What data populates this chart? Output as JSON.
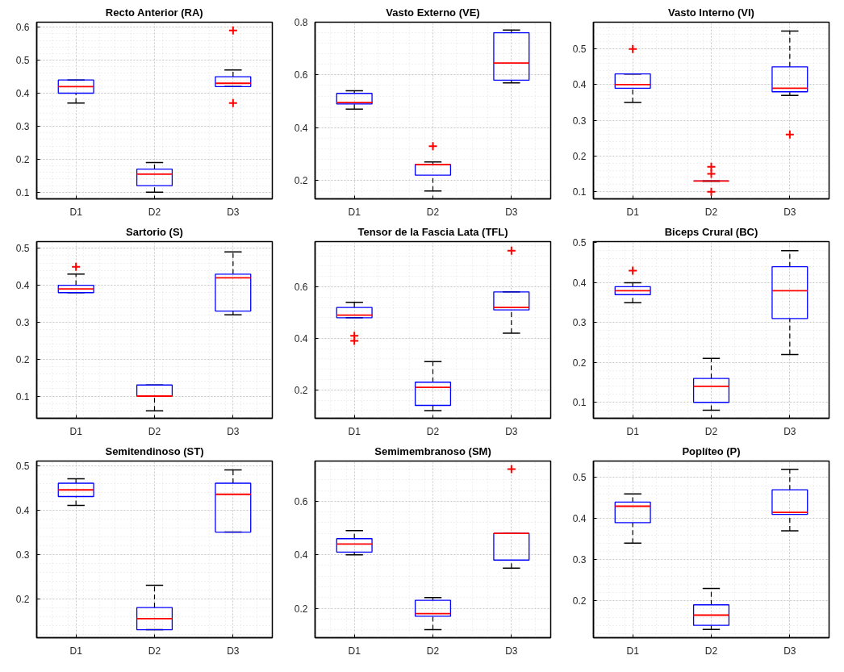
{
  "chart_data": [
    {
      "type": "box",
      "title": "Recto Anterior (RA)",
      "categories": [
        "D1",
        "D2",
        "D3"
      ],
      "ylim": [
        0.08,
        0.615
      ],
      "yticks": [
        0.1,
        0.2,
        0.3,
        0.4,
        0.5,
        0.6
      ],
      "grid": true,
      "marker": "cross",
      "line_style": "dashed",
      "series": [
        {
          "color": "#0000ff",
          "boxes": [
            {
              "low": 0.37,
              "q1": 0.4,
              "median": 0.42,
              "q3": 0.44,
              "high": 0.44
            },
            {
              "low": 0.1,
              "q1": 0.12,
              "median": 0.155,
              "q3": 0.17,
              "high": 0.19
            },
            {
              "low": 0.42,
              "q1": 0.42,
              "median": 0.43,
              "q3": 0.45,
              "high": 0.47,
              "outliers": [
                0.59,
                0.37
              ]
            }
          ]
        }
      ]
    },
    {
      "type": "box",
      "title": "Vasto Externo (VE)",
      "categories": [
        "D1",
        "D2",
        "D3"
      ],
      "ylim": [
        0.13,
        0.8
      ],
      "yticks": [
        0.2,
        0.4,
        0.6,
        0.8
      ],
      "grid": true,
      "marker": "cross",
      "line_style": "dashed",
      "series": [
        {
          "color": "#0000ff",
          "boxes": [
            {
              "low": 0.47,
              "q1": 0.49,
              "median": 0.495,
              "q3": 0.53,
              "high": 0.54
            },
            {
              "low": 0.16,
              "q1": 0.22,
              "median": 0.26,
              "q3": 0.26,
              "high": 0.27,
              "outliers": [
                0.33
              ]
            },
            {
              "low": 0.57,
              "q1": 0.58,
              "median": 0.645,
              "q3": 0.76,
              "high": 0.77
            }
          ]
        }
      ]
    },
    {
      "type": "box",
      "title": "Vasto Interno (VI)",
      "categories": [
        "D1",
        "D2",
        "D3"
      ],
      "ylim": [
        0.08,
        0.575
      ],
      "yticks": [
        0.1,
        0.2,
        0.3,
        0.4,
        0.5
      ],
      "grid": true,
      "marker": "cross",
      "line_style": "dashed",
      "series": [
        {
          "color": "#0000ff",
          "boxes": [
            {
              "low": 0.35,
              "q1": 0.39,
              "median": 0.4,
              "q3": 0.43,
              "high": 0.43,
              "outliers": [
                0.5
              ]
            },
            {
              "low": 0.13,
              "q1": 0.13,
              "median": 0.13,
              "q3": 0.13,
              "high": 0.13,
              "outliers": [
                0.17,
                0.15,
                0.1
              ]
            },
            {
              "low": 0.37,
              "q1": 0.38,
              "median": 0.39,
              "q3": 0.45,
              "high": 0.55,
              "outliers": [
                0.26
              ]
            }
          ]
        }
      ]
    },
    {
      "type": "box",
      "title": "Sartorio (S)",
      "categories": [
        "D1",
        "D2",
        "D3"
      ],
      "ylim": [
        0.04,
        0.518
      ],
      "yticks": [
        0.1,
        0.2,
        0.3,
        0.4,
        0.5
      ],
      "grid": true,
      "marker": "cross",
      "line_style": "dashed",
      "series": [
        {
          "color": "#0000ff",
          "boxes": [
            {
              "low": 0.38,
              "q1": 0.38,
              "median": 0.39,
              "q3": 0.4,
              "high": 0.43,
              "outliers": [
                0.45
              ]
            },
            {
              "low": 0.06,
              "q1": 0.1,
              "median": 0.1,
              "q3": 0.13,
              "high": 0.13
            },
            {
              "low": 0.32,
              "q1": 0.33,
              "median": 0.42,
              "q3": 0.43,
              "high": 0.49
            }
          ]
        }
      ]
    },
    {
      "type": "box",
      "title": "Tensor de la Fascia Lata (TFL)",
      "categories": [
        "D1",
        "D2",
        "D3"
      ],
      "ylim": [
        0.09,
        0.775
      ],
      "yticks": [
        0.2,
        0.4,
        0.6
      ],
      "grid": true,
      "marker": "cross",
      "line_style": "dashed",
      "series": [
        {
          "color": "#0000ff",
          "boxes": [
            {
              "low": 0.48,
              "q1": 0.48,
              "median": 0.49,
              "q3": 0.52,
              "high": 0.54,
              "outliers": [
                0.41,
                0.39
              ]
            },
            {
              "low": 0.12,
              "q1": 0.14,
              "median": 0.21,
              "q3": 0.23,
              "high": 0.31
            },
            {
              "low": 0.42,
              "q1": 0.51,
              "median": 0.52,
              "q3": 0.58,
              "high": 0.58,
              "outliers": [
                0.74
              ]
            }
          ]
        }
      ]
    },
    {
      "type": "box",
      "title": "Biceps Crural (BC)",
      "categories": [
        "D1",
        "D2",
        "D3"
      ],
      "ylim": [
        0.06,
        0.503
      ],
      "yticks": [
        0.1,
        0.2,
        0.3,
        0.4,
        0.5
      ],
      "grid": true,
      "marker": "cross",
      "line_style": "dashed",
      "series": [
        {
          "color": "#0000ff",
          "boxes": [
            {
              "low": 0.35,
              "q1": 0.37,
              "median": 0.38,
              "q3": 0.39,
              "high": 0.4,
              "outliers": [
                0.43
              ]
            },
            {
              "low": 0.08,
              "q1": 0.1,
              "median": 0.14,
              "q3": 0.16,
              "high": 0.21
            },
            {
              "low": 0.22,
              "q1": 0.31,
              "median": 0.38,
              "q3": 0.44,
              "high": 0.48
            }
          ]
        }
      ]
    },
    {
      "type": "box",
      "title": "Semitendinoso (ST)",
      "categories": [
        "D1",
        "D2",
        "D3"
      ],
      "ylim": [
        0.112,
        0.51
      ],
      "yticks": [
        0.2,
        0.3,
        0.4,
        0.5
      ],
      "grid": true,
      "marker": "cross",
      "line_style": "dashed",
      "series": [
        {
          "color": "#0000ff",
          "boxes": [
            {
              "low": 0.41,
              "q1": 0.43,
              "median": 0.445,
              "q3": 0.46,
              "high": 0.47
            },
            {
              "low": 0.13,
              "q1": 0.13,
              "median": 0.155,
              "q3": 0.18,
              "high": 0.23
            },
            {
              "low": 0.35,
              "q1": 0.35,
              "median": 0.435,
              "q3": 0.46,
              "high": 0.49
            }
          ]
        }
      ]
    },
    {
      "type": "box",
      "title": "Semimembranoso (SM)",
      "categories": [
        "D1",
        "D2",
        "D3"
      ],
      "ylim": [
        0.09,
        0.75
      ],
      "yticks": [
        0.2,
        0.4,
        0.6
      ],
      "grid": true,
      "marker": "cross",
      "line_style": "dashed",
      "series": [
        {
          "color": "#0000ff",
          "boxes": [
            {
              "low": 0.4,
              "q1": 0.41,
              "median": 0.44,
              "q3": 0.46,
              "high": 0.49
            },
            {
              "low": 0.12,
              "q1": 0.17,
              "median": 0.18,
              "q3": 0.23,
              "high": 0.24
            },
            {
              "low": 0.35,
              "q1": 0.38,
              "median": 0.48,
              "q3": 0.48,
              "high": 0.48,
              "outliers": [
                0.72
              ]
            }
          ]
        }
      ]
    },
    {
      "type": "box",
      "title": "Poplíteo (P)",
      "categories": [
        "D1",
        "D2",
        "D3"
      ],
      "ylim": [
        0.11,
        0.54
      ],
      "yticks": [
        0.2,
        0.3,
        0.4,
        0.5
      ],
      "grid": true,
      "marker": "cross",
      "line_style": "dashed",
      "series": [
        {
          "color": "#0000ff",
          "boxes": [
            {
              "low": 0.34,
              "q1": 0.39,
              "median": 0.43,
              "q3": 0.44,
              "high": 0.46
            },
            {
              "low": 0.13,
              "q1": 0.14,
              "median": 0.165,
              "q3": 0.19,
              "high": 0.23
            },
            {
              "low": 0.37,
              "q1": 0.41,
              "median": 0.415,
              "q3": 0.47,
              "high": 0.52
            }
          ]
        }
      ]
    }
  ]
}
